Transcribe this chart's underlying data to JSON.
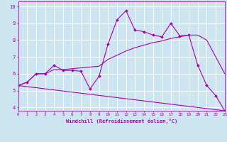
{
  "xlabel": "Windchill (Refroidissement éolien,°C)",
  "xlim": [
    0,
    23
  ],
  "ylim": [
    3.8,
    10.3
  ],
  "xticks": [
    0,
    1,
    2,
    3,
    4,
    5,
    6,
    7,
    8,
    9,
    10,
    11,
    12,
    13,
    14,
    15,
    16,
    17,
    18,
    19,
    20,
    21,
    22,
    23
  ],
  "yticks": [
    4,
    5,
    6,
    7,
    8,
    9,
    10
  ],
  "bg_color": "#cce5f0",
  "grid_color": "#ffffff",
  "line_color": "#aa00aa",
  "line1_x": [
    0,
    1,
    2,
    3,
    4,
    5,
    6,
    7,
    8,
    9,
    10,
    11,
    12,
    13,
    14,
    15,
    16,
    17,
    18,
    19,
    20,
    21,
    22,
    23
  ],
  "line1_y": [
    5.3,
    5.5,
    6.0,
    6.0,
    6.5,
    6.2,
    6.2,
    6.15,
    5.1,
    5.85,
    7.75,
    9.2,
    9.75,
    8.6,
    8.5,
    8.3,
    8.2,
    9.0,
    8.25,
    8.3,
    6.5,
    5.3,
    4.7,
    3.8
  ],
  "line2_x": [
    0,
    23
  ],
  "line2_y": [
    5.3,
    3.8
  ],
  "line3_x": [
    0,
    1,
    2,
    3,
    4,
    5,
    6,
    7,
    8,
    9,
    10,
    11,
    12,
    13,
    14,
    15,
    16,
    17,
    18,
    19,
    20,
    21,
    22,
    23
  ],
  "line3_y": [
    5.3,
    5.5,
    6.0,
    6.0,
    6.25,
    6.25,
    6.3,
    6.35,
    6.4,
    6.45,
    6.85,
    7.1,
    7.35,
    7.55,
    7.7,
    7.85,
    7.95,
    8.1,
    8.2,
    8.3,
    8.3,
    8.0,
    7.0,
    6.0
  ]
}
